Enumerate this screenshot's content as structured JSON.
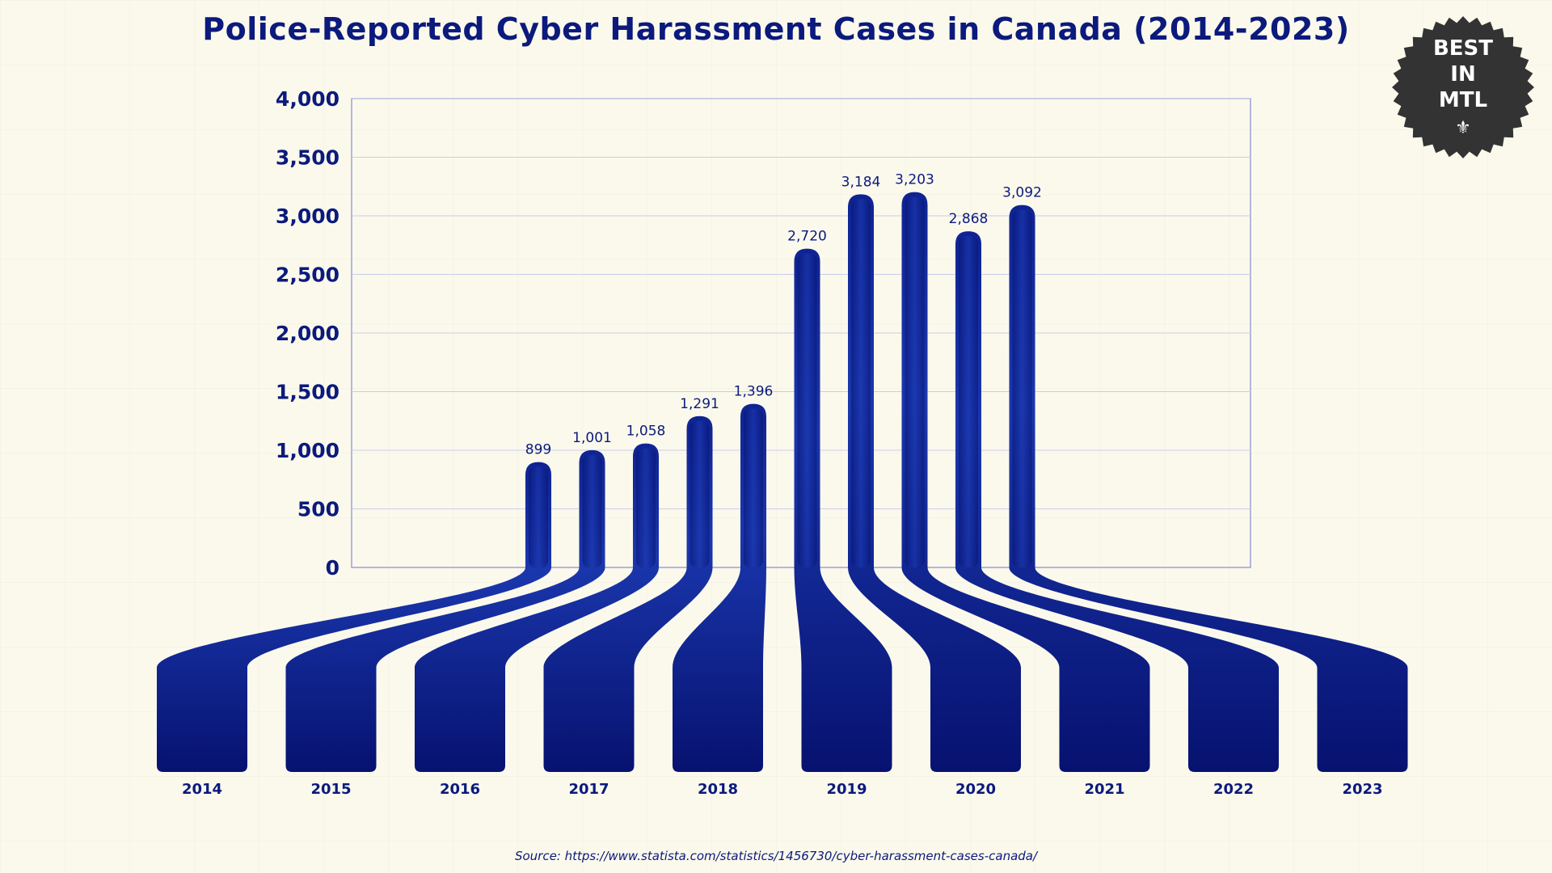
{
  "title": "Police-Reported Cyber Harassment Cases in Canada (2014-2023)",
  "source": "Source: https://www.statista.com/statistics/1456730/cyber-harassment-cases-canada/",
  "badge": {
    "text": "BEST\nIN\nMTL",
    "icon": "fleur-de-lis-icon",
    "color": "#333333"
  },
  "colors": {
    "bar_dark": "#0b1a7c",
    "bar_light": "#1e3fb8",
    "text": "#0b1a7c",
    "background": "#fbf9ec",
    "plot_border": "#9aa1d8",
    "gridline": "#c9cde8"
  },
  "chart_data": {
    "type": "bar",
    "title": "Police-Reported Cyber Harassment Cases in Canada (2014-2023)",
    "categories": [
      "2014",
      "2015",
      "2016",
      "2017",
      "2018",
      "2019",
      "2020",
      "2021",
      "2022",
      "2023"
    ],
    "values": [
      899,
      1001,
      1058,
      1291,
      1396,
      2720,
      3184,
      3203,
      2868,
      3092
    ],
    "data_labels": [
      "899",
      "1,001",
      "1,058",
      "1,291",
      "1,396",
      "2,720",
      "3,184",
      "3,203",
      "2,868",
      "3,092"
    ],
    "y_ticks": [
      0,
      500,
      1000,
      1500,
      2000,
      2500,
      3000,
      3500,
      4000
    ],
    "y_tick_labels": [
      "0",
      "500",
      "1,000",
      "1,500",
      "2,000",
      "2,500",
      "3,000",
      "3,500",
      "4,000"
    ],
    "ylim": [
      0,
      4000
    ],
    "xlabel": "",
    "ylabel": "",
    "grid": true,
    "legend": "none"
  }
}
